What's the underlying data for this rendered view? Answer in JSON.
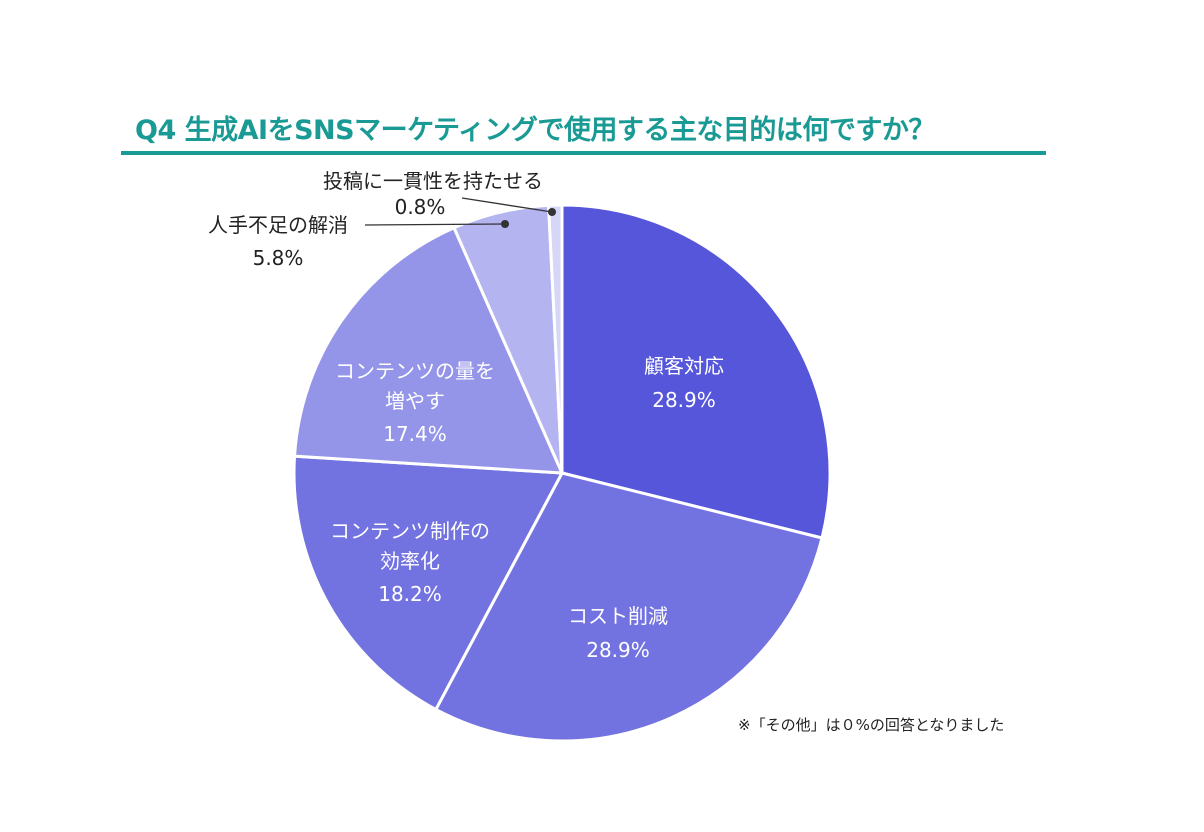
{
  "chart_data": {
    "type": "pie",
    "title": "Q4 生成AIをSNSマーケティングで使用する主な目的は何ですか？",
    "note": "※「その他」は０%の回答となりました",
    "slices": [
      {
        "label": "顧客対応",
        "lines": [
          "顧客対応"
        ],
        "value": 28.9,
        "value_label": "28.9%",
        "color": "#5656DB",
        "label_pos": "inside"
      },
      {
        "label": "コスト削減",
        "lines": [
          "コスト削減"
        ],
        "value": 28.9,
        "value_label": "28.9%",
        "color": "#7272E0",
        "label_pos": "inside"
      },
      {
        "label": "コンテンツ制作の効率化",
        "lines": [
          "コンテンツ制作の",
          "効率化"
        ],
        "value": 18.2,
        "value_label": "18.2%",
        "color": "#7272E0",
        "label_pos": "inside"
      },
      {
        "label": "コンテンツの量を増やす",
        "lines": [
          "コンテンツの量を",
          "増やす"
        ],
        "value": 17.4,
        "value_label": "17.4%",
        "color": "#9494E8",
        "label_pos": "inside"
      },
      {
        "label": "人手不足の解消",
        "lines": [
          "人手不足の解消"
        ],
        "value": 5.8,
        "value_label": "5.8%",
        "color": "#B4B4F0",
        "label_pos": "outside"
      },
      {
        "label": "投稿に一貫性を持たせる",
        "lines": [
          "投稿に一貫性を持たせる"
        ],
        "value": 0.8,
        "value_label": "0.8%",
        "color": "#D6D6F6",
        "label_pos": "outside"
      }
    ]
  }
}
